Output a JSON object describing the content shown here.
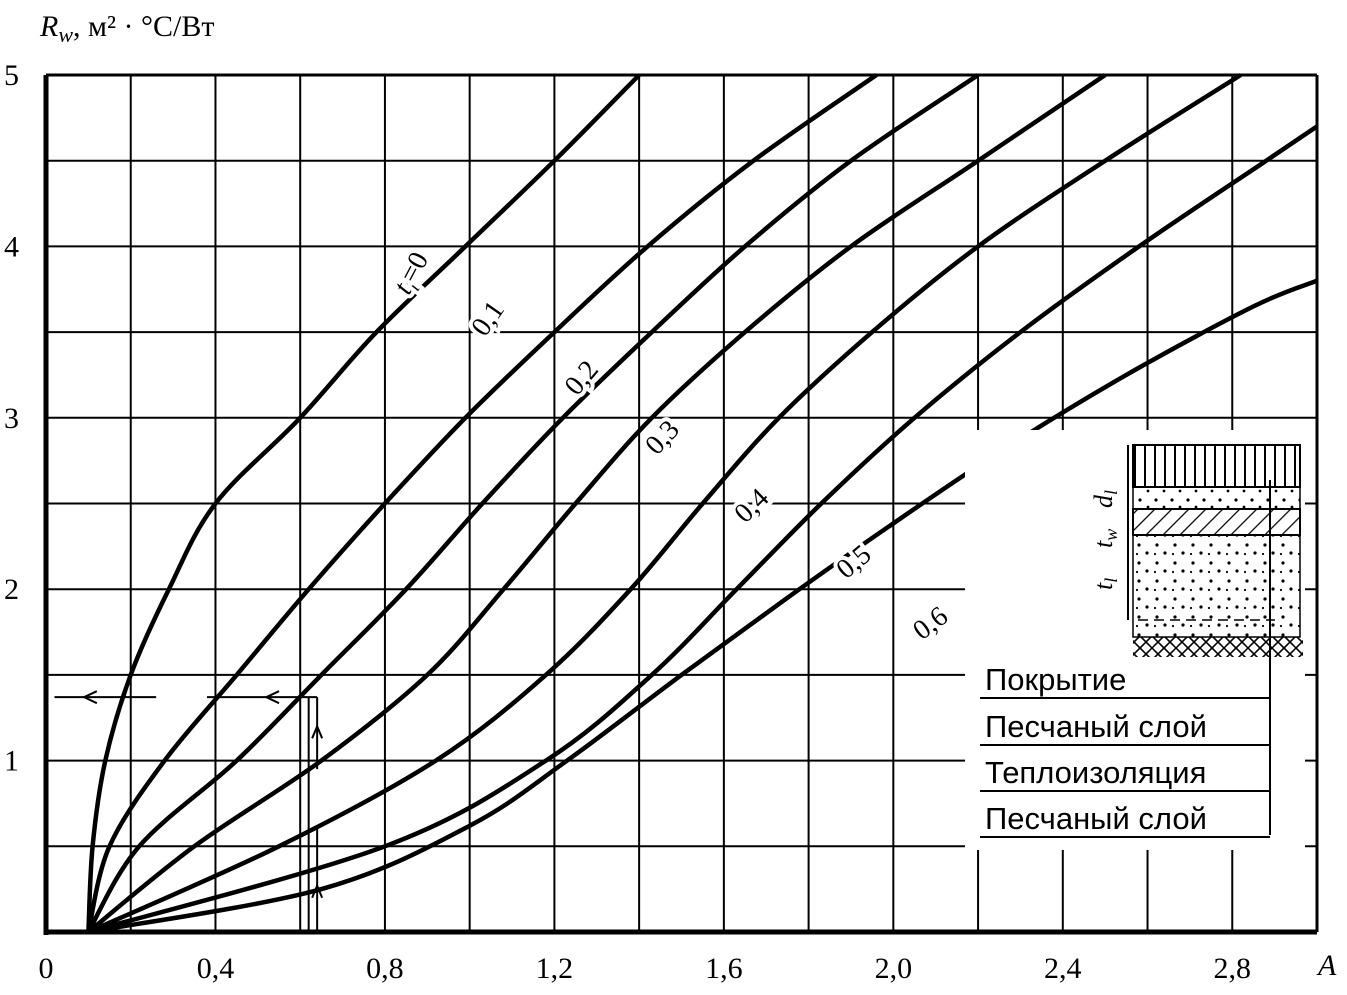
{
  "chart_data": {
    "type": "line",
    "xlabel": "A",
    "ylabel_main": "R",
    "ylabel_sub": "w",
    "ylabel_unit": ", м² · °С/Вт",
    "xlim": [
      0,
      3.0
    ],
    "ylim": [
      0,
      5
    ],
    "grid": true,
    "x_ticks": [
      "0",
      "0,4",
      "0,8",
      "1,2",
      "1,6",
      "2,0",
      "2,4",
      "2,8"
    ],
    "y_ticks": [
      "1",
      "2",
      "3",
      "4",
      "5"
    ],
    "series": [
      {
        "name": "t_l=0",
        "label_main": "t",
        "label_sub": "l",
        "label_rest": "=0",
        "points": [
          [
            0.1,
            0
          ],
          [
            0.11,
            0.5
          ],
          [
            0.14,
            1.0
          ],
          [
            0.2,
            1.5
          ],
          [
            0.29,
            2.0
          ],
          [
            0.4,
            2.5
          ],
          [
            0.6,
            3.0
          ],
          [
            0.78,
            3.5
          ],
          [
            0.99,
            4.0
          ],
          [
            1.2,
            4.5
          ],
          [
            1.4,
            5.0
          ]
        ]
      },
      {
        "name": "0,1",
        "label": "0,1",
        "points": [
          [
            0.1,
            0
          ],
          [
            0.15,
            0.5
          ],
          [
            0.28,
            1.0
          ],
          [
            0.45,
            1.5
          ],
          [
            0.62,
            2.0
          ],
          [
            0.8,
            2.5
          ],
          [
            0.99,
            3.0
          ],
          [
            1.2,
            3.5
          ],
          [
            1.42,
            4.0
          ],
          [
            1.67,
            4.5
          ],
          [
            1.96,
            5.0
          ]
        ]
      },
      {
        "name": "0,2",
        "label": "0,2",
        "points": [
          [
            0.1,
            0
          ],
          [
            0.22,
            0.5
          ],
          [
            0.45,
            1.0
          ],
          [
            0.65,
            1.5
          ],
          [
            0.85,
            2.0
          ],
          [
            1.03,
            2.5
          ],
          [
            1.22,
            3.0
          ],
          [
            1.43,
            3.5
          ],
          [
            1.65,
            4.0
          ],
          [
            1.9,
            4.5
          ],
          [
            2.2,
            5.0
          ]
        ]
      },
      {
        "name": "0,3",
        "label": "0,3",
        "points": [
          [
            0.1,
            0
          ],
          [
            0.35,
            0.5
          ],
          [
            0.65,
            1.0
          ],
          [
            0.9,
            1.5
          ],
          [
            1.08,
            2.0
          ],
          [
            1.25,
            2.5
          ],
          [
            1.43,
            3.0
          ],
          [
            1.65,
            3.5
          ],
          [
            1.9,
            4.0
          ],
          [
            2.2,
            4.5
          ],
          [
            2.5,
            5.0
          ]
        ]
      },
      {
        "name": "0,4",
        "label": "0,4",
        "points": [
          [
            0.1,
            0
          ],
          [
            0.55,
            0.5
          ],
          [
            0.92,
            1.0
          ],
          [
            1.18,
            1.5
          ],
          [
            1.38,
            2.0
          ],
          [
            1.55,
            2.5
          ],
          [
            1.73,
            3.0
          ],
          [
            1.95,
            3.5
          ],
          [
            2.2,
            4.0
          ],
          [
            2.5,
            4.5
          ],
          [
            2.82,
            5.0
          ]
        ]
      },
      {
        "name": "0,5",
        "label": "0,5",
        "points": [
          [
            0.1,
            0
          ],
          [
            0.8,
            0.5
          ],
          [
            1.18,
            1.0
          ],
          [
            1.43,
            1.5
          ],
          [
            1.63,
            2.0
          ],
          [
            1.83,
            2.5
          ],
          [
            2.05,
            3.0
          ],
          [
            2.3,
            3.5
          ],
          [
            2.58,
            4.0
          ],
          [
            2.88,
            4.5
          ],
          [
            3.0,
            4.7
          ]
        ]
      },
      {
        "name": "0,6",
        "label": "0,6",
        "points": [
          [
            0.1,
            0
          ],
          [
            0.65,
            0.25
          ],
          [
            1.0,
            0.62
          ],
          [
            1.23,
            1.0
          ],
          [
            1.5,
            1.5
          ],
          [
            1.75,
            1.95
          ],
          [
            1.98,
            2.35
          ],
          [
            2.25,
            2.8
          ],
          [
            2.55,
            3.25
          ],
          [
            2.85,
            3.65
          ],
          [
            3.0,
            3.8
          ]
        ]
      }
    ],
    "annotations": {
      "example_x": 0.63,
      "example_y": 1.37
    },
    "inset": {
      "layers": [
        "Покрытие",
        "Песчаный слой",
        "Теплоизоляция",
        "Песчаный слой"
      ],
      "dim_labels": [
        {
          "main": "d",
          "sub": "l"
        },
        {
          "main": "t",
          "sub": "w"
        },
        {
          "main": "t",
          "sub": "l"
        }
      ]
    }
  }
}
